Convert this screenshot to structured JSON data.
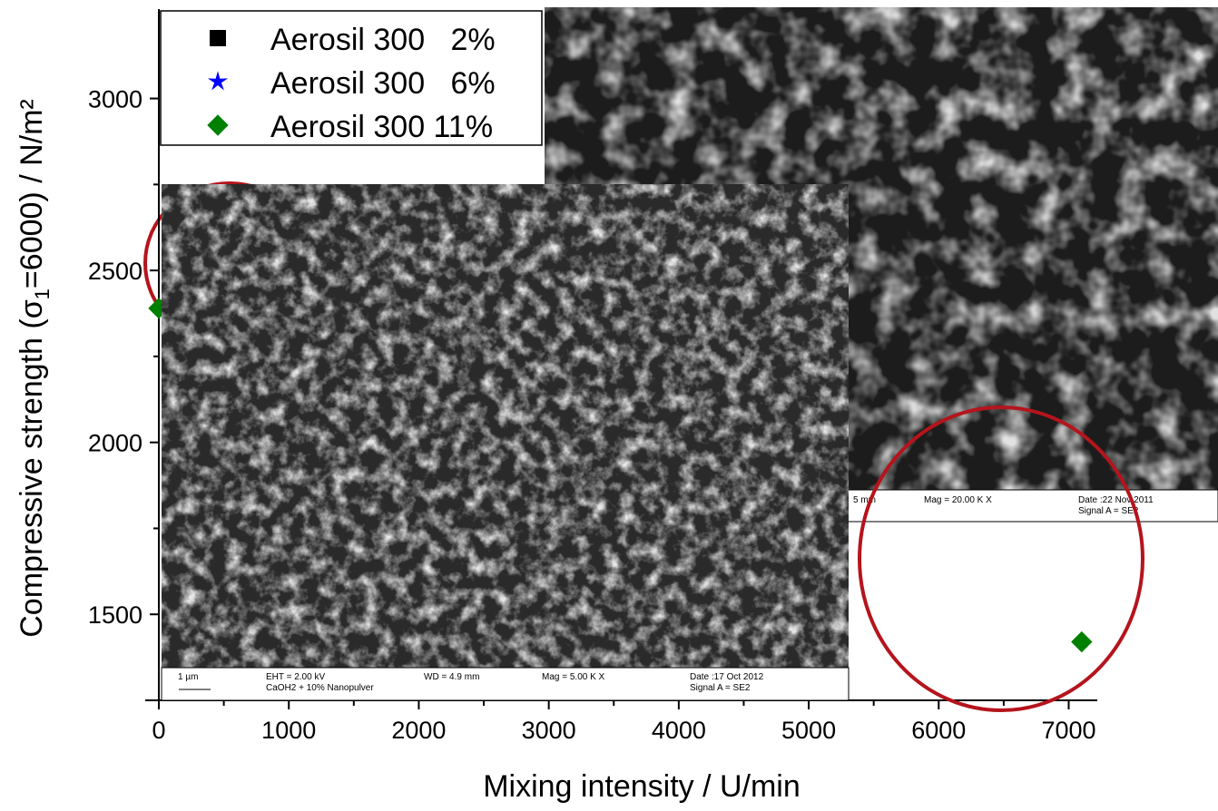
{
  "chart_data": {
    "type": "scatter",
    "xlabel": "Mixing intensity  / U/min",
    "ylabel": [
      "Compressive strength (σ",
      "1",
      "=6000) / N/m²"
    ],
    "xlim": [
      0,
      7220
    ],
    "ylim": [
      1250,
      3260
    ],
    "xticks": [
      0,
      1000,
      2000,
      3000,
      4000,
      5000,
      6000,
      7000
    ],
    "yticks": [
      1500,
      2000,
      2500,
      3000
    ],
    "series": [
      {
        "name": "Aerosil 300   2%",
        "color": "#000000",
        "marker": "square",
        "x": [],
        "values": []
      },
      {
        "name": "Aerosil 300   6%",
        "color": "#0000ff",
        "marker": "star",
        "x": [],
        "values": []
      },
      {
        "name": "Aerosil 300 11%",
        "color": "#008000",
        "marker": "diamond",
        "x": [
          0,
          7100
        ],
        "values": [
          2390,
          1420
        ]
      }
    ],
    "legend": "upper-left"
  },
  "sem_images": [
    {
      "labels": [
        "5 mm",
        "Mag = 20.00 K X",
        "Date :22 Nov 2011",
        "Signal A = SE2"
      ]
    },
    {
      "labels": [
        "1 µm",
        "EHT = 2.00 kV",
        "CaOH2 + 10% Nanopulver",
        "WD = 4.9 mm",
        "Mag =  5.00 K X",
        "Date :17 Oct 2012",
        "Signal A = SE2"
      ]
    }
  ]
}
